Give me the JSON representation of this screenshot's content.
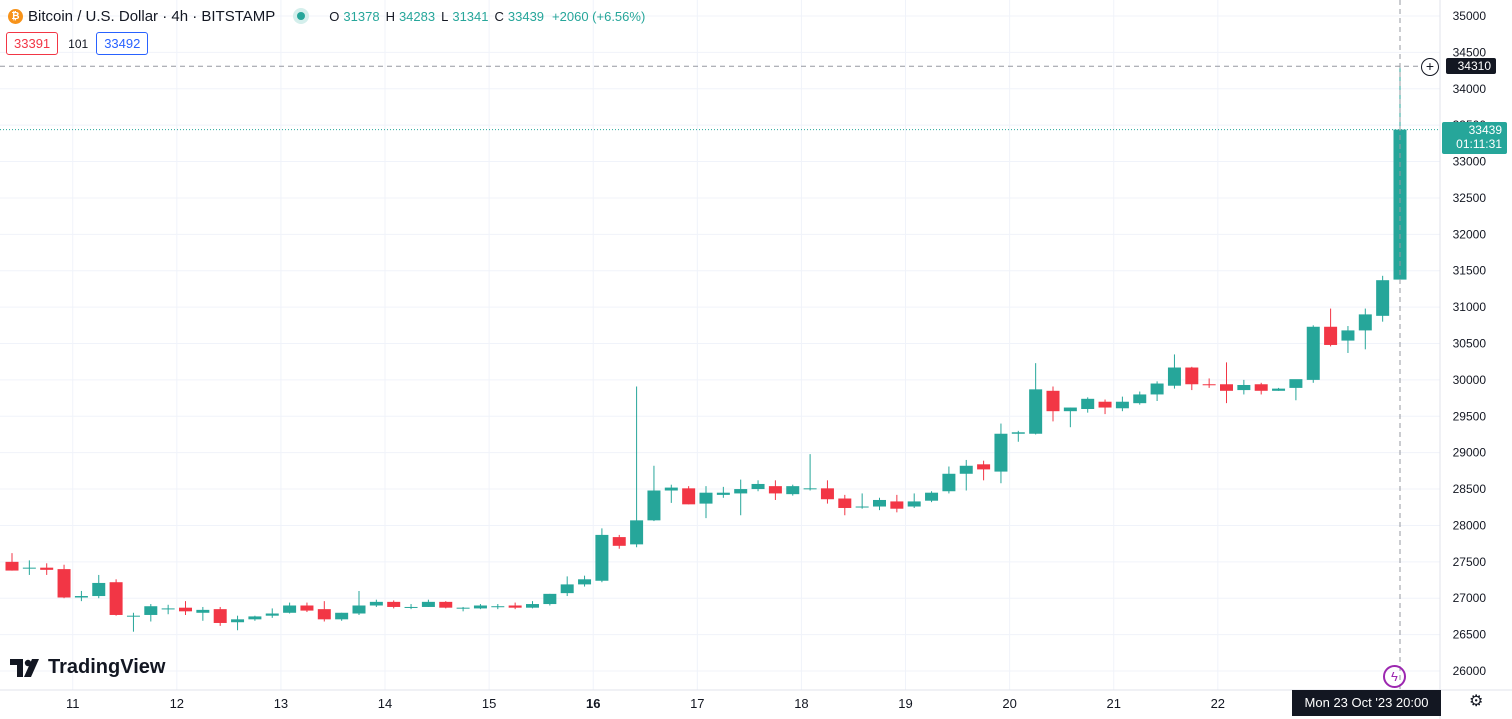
{
  "header": {
    "symbol_icon": "bitcoin-icon",
    "symbol_title": "Bitcoin / U.S. Dollar · 4h · BITSTAMP",
    "open_label": "O",
    "open": "31378",
    "high_label": "H",
    "high": "34283",
    "low_label": "L",
    "low": "31341",
    "close_label": "C",
    "close": "33439",
    "change": "+2060 (+6.56%)"
  },
  "quote": {
    "sell": "33391",
    "spread": "101",
    "buy": "33492"
  },
  "branding": {
    "logo_text": "TradingView"
  },
  "price_tags": {
    "crosshair_price": "34310",
    "last_price": "33439",
    "countdown": "01:11:31",
    "crosshair_time": "Mon 23 Oct '23  20:00"
  },
  "colors": {
    "up": "#26a69a",
    "down": "#f23645",
    "grid": "#f0f3fa",
    "text": "#131722"
  },
  "icons": {
    "settings": "gear-icon",
    "event": "lightning-icon",
    "crosshair_add": "plus-circle-icon"
  },
  "chart_data": {
    "type": "candlestick",
    "interval": "4h",
    "ylim": [
      25800,
      35150
    ],
    "y_ticks": [
      26000,
      26500,
      27000,
      27500,
      28000,
      28500,
      29000,
      29500,
      30000,
      30500,
      31000,
      31500,
      32000,
      32500,
      33000,
      33500,
      34000,
      34500,
      35000
    ],
    "x_ticks": [
      {
        "label": "11",
        "index": 3.5,
        "bold": false
      },
      {
        "label": "12",
        "index": 9.5,
        "bold": false
      },
      {
        "label": "13",
        "index": 15.5,
        "bold": false
      },
      {
        "label": "14",
        "index": 21.5,
        "bold": false
      },
      {
        "label": "15",
        "index": 27.5,
        "bold": false
      },
      {
        "label": "16",
        "index": 33.5,
        "bold": true
      },
      {
        "label": "17",
        "index": 39.5,
        "bold": false
      },
      {
        "label": "18",
        "index": 45.5,
        "bold": false
      },
      {
        "label": "19",
        "index": 51.5,
        "bold": false
      },
      {
        "label": "20",
        "index": 57.5,
        "bold": false
      },
      {
        "label": "21",
        "index": 63.5,
        "bold": false
      },
      {
        "label": "22",
        "index": 69.5,
        "bold": false
      }
    ],
    "candles": [
      [
        27500,
        27620,
        27380,
        27380
      ],
      [
        27420,
        27520,
        27320,
        27420
      ],
      [
        27420,
        27480,
        27320,
        27390
      ],
      [
        27400,
        27460,
        27000,
        27010
      ],
      [
        27010,
        27100,
        26960,
        27030
      ],
      [
        27030,
        27320,
        27000,
        27210
      ],
      [
        27220,
        27260,
        26760,
        26770
      ],
      [
        26760,
        26800,
        26540,
        26760
      ],
      [
        26770,
        26920,
        26680,
        26890
      ],
      [
        26850,
        26910,
        26780,
        26860
      ],
      [
        26870,
        26960,
        26770,
        26820
      ],
      [
        26800,
        26880,
        26690,
        26840
      ],
      [
        26850,
        26880,
        26620,
        26660
      ],
      [
        26670,
        26760,
        26560,
        26710
      ],
      [
        26710,
        26760,
        26690,
        26750
      ],
      [
        26760,
        26860,
        26730,
        26790
      ],
      [
        26800,
        26940,
        26790,
        26900
      ],
      [
        26900,
        26940,
        26810,
        26830
      ],
      [
        26850,
        26960,
        26680,
        26710
      ],
      [
        26710,
        26800,
        26690,
        26800
      ],
      [
        26790,
        27100,
        26770,
        26900
      ],
      [
        26900,
        26980,
        26880,
        26950
      ],
      [
        26950,
        26970,
        26860,
        26880
      ],
      [
        26880,
        26920,
        26850,
        26880
      ],
      [
        26880,
        26980,
        26880,
        26950
      ],
      [
        26950,
        26960,
        26860,
        26870
      ],
      [
        26870,
        26880,
        26820,
        26870
      ],
      [
        26860,
        26920,
        26850,
        26900
      ],
      [
        26890,
        26920,
        26850,
        26890
      ],
      [
        26900,
        26940,
        26850,
        26870
      ],
      [
        26870,
        26960,
        26860,
        26920
      ],
      [
        26920,
        27060,
        26900,
        27060
      ],
      [
        27070,
        27300,
        27030,
        27190
      ],
      [
        27190,
        27310,
        27160,
        27260
      ],
      [
        27240,
        27960,
        27220,
        27870
      ],
      [
        27840,
        27870,
        27680,
        27720
      ],
      [
        27740,
        29910,
        27700,
        28070
      ],
      [
        28070,
        28820,
        28060,
        28480
      ],
      [
        28480,
        28560,
        28310,
        28520
      ],
      [
        28510,
        28540,
        28290,
        28290
      ],
      [
        28300,
        28540,
        28100,
        28450
      ],
      [
        28420,
        28530,
        28380,
        28450
      ],
      [
        28440,
        28630,
        28140,
        28500
      ],
      [
        28500,
        28620,
        28470,
        28570
      ],
      [
        28540,
        28620,
        28350,
        28440
      ],
      [
        28430,
        28560,
        28410,
        28540
      ],
      [
        28500,
        28980,
        28480,
        28510
      ],
      [
        28510,
        28620,
        28300,
        28360
      ],
      [
        28370,
        28420,
        28140,
        28240
      ],
      [
        28250,
        28440,
        28230,
        28260
      ],
      [
        28260,
        28380,
        28210,
        28350
      ],
      [
        28330,
        28420,
        28180,
        28230
      ],
      [
        28260,
        28440,
        28240,
        28330
      ],
      [
        28340,
        28470,
        28320,
        28450
      ],
      [
        28470,
        28810,
        28440,
        28710
      ],
      [
        28710,
        28900,
        28480,
        28820
      ],
      [
        28840,
        28890,
        28620,
        28770
      ],
      [
        28740,
        29400,
        28580,
        29260
      ],
      [
        29260,
        29300,
        29150,
        29280
      ],
      [
        29260,
        30230,
        29250,
        29870
      ],
      [
        29850,
        29910,
        29430,
        29570
      ],
      [
        29570,
        29620,
        29350,
        29620
      ],
      [
        29600,
        29760,
        29550,
        29740
      ],
      [
        29700,
        29730,
        29530,
        29620
      ],
      [
        29610,
        29770,
        29570,
        29700
      ],
      [
        29680,
        29840,
        29660,
        29800
      ],
      [
        29800,
        29980,
        29710,
        29950
      ],
      [
        29920,
        30350,
        29880,
        30170
      ],
      [
        30170,
        30180,
        29860,
        29940
      ],
      [
        29940,
        30020,
        29890,
        29930
      ],
      [
        29940,
        30240,
        29680,
        29850
      ],
      [
        29860,
        30000,
        29800,
        29930
      ],
      [
        29940,
        29960,
        29800,
        29850
      ],
      [
        29850,
        29890,
        29850,
        29880
      ],
      [
        29890,
        30000,
        29720,
        30010
      ],
      [
        30000,
        30750,
        29960,
        30730
      ],
      [
        30730,
        30980,
        30460,
        30480
      ],
      [
        30540,
        30740,
        30370,
        30680
      ],
      [
        30680,
        30980,
        30420,
        30900
      ],
      [
        30880,
        31430,
        30800,
        31370
      ],
      [
        31378,
        34283,
        31341,
        33439
      ]
    ]
  }
}
